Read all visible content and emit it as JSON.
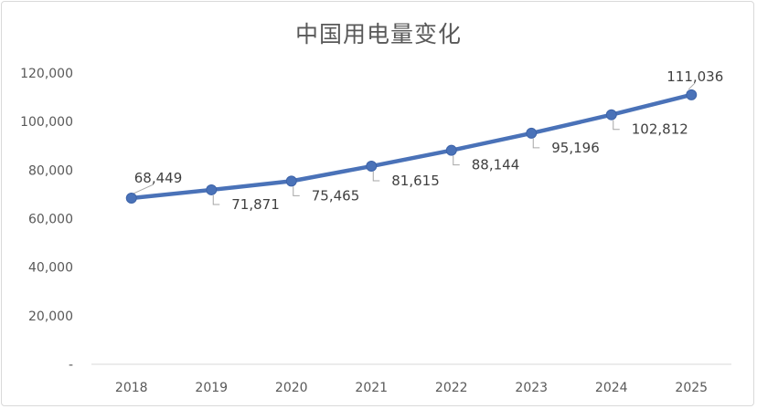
{
  "chart_data": {
    "type": "line",
    "title": "中国用电量变化",
    "xlabel": "",
    "ylabel": "",
    "categories": [
      "2018",
      "2019",
      "2020",
      "2021",
      "2022",
      "2023",
      "2024",
      "2025"
    ],
    "series": [
      {
        "values": [
          68449,
          71871,
          75465,
          81615,
          88144,
          95196,
          102812,
          111036
        ],
        "data_labels": [
          "68,449",
          "71,871",
          "75,465",
          "81,615",
          "88,144",
          "95,196",
          "102,812",
          "111,036"
        ]
      }
    ],
    "ylim": [
      0,
      120000
    ],
    "y_ticks": [
      0,
      20000,
      40000,
      60000,
      80000,
      100000,
      120000
    ],
    "y_tick_labels": [
      "-",
      "20,000",
      "40,000",
      "60,000",
      "80,000",
      "100,000",
      "120,000"
    ],
    "grid": false,
    "legend": "none",
    "line_color": "#4a72b8",
    "axis_color": "#d9d9d9"
  }
}
